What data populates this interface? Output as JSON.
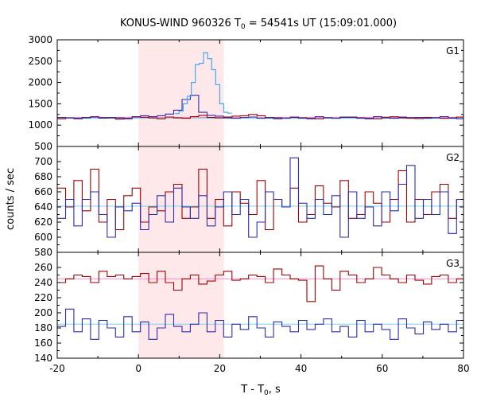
{
  "chart_data": {
    "type": "line",
    "title_main": "KONUS-WIND 960326 T",
    "title_sub": "0",
    "title_rest": " = 54541s UT (15:09:01.000)",
    "xlabel_main": "T - T",
    "xlabel_sub": "0",
    "xlabel_rest": ", s",
    "ylabel": "counts / sec",
    "xlim": [
      -20,
      80
    ],
    "xticks": [
      -20,
      0,
      20,
      40,
      60,
      80
    ],
    "shaded_interval": [
      0,
      21
    ],
    "bin_width": 2.048,
    "colors": {
      "shade": "#ffe8ea",
      "red_series": "#a00000",
      "blue_series": "#2b2bb3",
      "red_background": "#ff88cc",
      "blue_background": "#7fd0f0",
      "burst_fine": "#44aaee"
    },
    "panels": [
      {
        "label": "G1",
        "ylim": [
          500,
          3000
        ],
        "yticks": [
          500,
          1000,
          1500,
          2000,
          2500,
          3000
        ],
        "background_levels": {
          "red": 1180,
          "blue": 1160
        },
        "series": [
          {
            "color_key": "red_series",
            "values": [
              1150,
              1170,
              1160,
              1180,
              1190,
              1175,
              1170,
              1140,
              1160,
              1200,
              1185,
              1170,
              1150,
              1190,
              1170,
              1160,
              1200,
              1230,
              1180,
              1170,
              1190,
              1210,
              1220,
              1250,
              1220,
              1180,
              1170,
              1160,
              1180,
              1170,
              1160,
              1150,
              1175,
              1165,
              1180,
              1190,
              1170,
              1160,
              1150,
              1185,
              1195,
              1170,
              1160,
              1155,
              1180,
              1175,
              1160,
              1170,
              1190,
              1175
            ]
          },
          {
            "color_key": "blue_series",
            "values": [
              1180,
              1170,
              1150,
              1170,
              1200,
              1165,
              1180,
              1170,
              1150,
              1190,
              1220,
              1200,
              1220,
              1260,
              1350,
              1600,
              1700,
              1300,
              1230,
              1210,
              1170,
              1160,
              1180,
              1190,
              1160,
              1170,
              1150,
              1165,
              1190,
              1160,
              1150,
              1200,
              1170,
              1160,
              1190,
              1180,
              1160,
              1150,
              1200,
              1170,
              1160,
              1190,
              1175,
              1180,
              1160,
              1170,
              1200,
              1160,
              1150,
              1170
            ]
          }
        ],
        "burst_fine": {
          "start": 9.0,
          "width": 1.0,
          "values": [
            1270,
            1330,
            1500,
            1680,
            2000,
            2420,
            2450,
            2700,
            2560,
            2300,
            1950,
            1500,
            1300,
            1280
          ]
        }
      },
      {
        "label": "G2",
        "ylim": [
          580,
          720
        ],
        "yticks": [
          580,
          600,
          620,
          640,
          660,
          680,
          700
        ],
        "background_levels": {
          "red": 641,
          "blue": 641
        },
        "series": [
          {
            "color_key": "red_series",
            "values": [
              665,
              640,
              675,
              635,
              690,
              620,
              650,
              610,
              655,
              665,
              620,
              640,
              635,
              660,
              670,
              625,
              640,
              690,
              625,
              650,
              615,
              660,
              645,
              630,
              675,
              610,
              650,
              640,
              665,
              620,
              630,
              668,
              645,
              640,
              675,
              625,
              630,
              660,
              645,
              620,
              650,
              688,
              620,
              650,
              630,
              660,
              670,
              625,
              650,
              612
            ]
          },
          {
            "color_key": "blue_series",
            "values": [
              625,
              650,
              615,
              650,
              660,
              630,
              600,
              640,
              635,
              645,
              610,
              630,
              655,
              620,
              665,
              640,
              625,
              655,
              615,
              640,
              660,
              630,
              650,
              600,
              620,
              660,
              650,
              640,
              705,
              645,
              625,
              650,
              630,
              655,
              600,
              660,
              625,
              640,
              615,
              660,
              635,
              670,
              695,
              625,
              650,
              630,
              660,
              605,
              650,
              640
            ]
          }
        ]
      },
      {
        "label": "G3",
        "ylim": [
          140,
          280
        ],
        "yticks": [
          140,
          160,
          180,
          200,
          220,
          240,
          260
        ],
        "background_levels": {
          "red": 245,
          "blue": 185
        },
        "series": [
          {
            "color_key": "red_series",
            "values": [
              240,
              245,
              250,
              248,
              240,
              255,
              248,
              250,
              245,
              248,
              252,
              240,
              255,
              240,
              230,
              245,
              250,
              238,
              242,
              250,
              255,
              243,
              245,
              250,
              248,
              240,
              258,
              250,
              245,
              243,
              215,
              262,
              245,
              230,
              255,
              250,
              240,
              245,
              260,
              250,
              245,
              240,
              250,
              243,
              238,
              248,
              250,
              240,
              245,
              250
            ]
          },
          {
            "color_key": "blue_series",
            "values": [
              182,
              205,
              175,
              192,
              165,
              190,
              180,
              168,
              195,
              175,
              188,
              165,
              180,
              198,
              182,
              175,
              185,
              200,
              175,
              190,
              168,
              185,
              178,
              195,
              180,
              168,
              188,
              182,
              175,
              190,
              178,
              185,
              192,
              175,
              182,
              168,
              190,
              175,
              185,
              178,
              165,
              192,
              180,
              172,
              188,
              178,
              185,
              175,
              190,
              180
            ]
          }
        ]
      }
    ]
  }
}
